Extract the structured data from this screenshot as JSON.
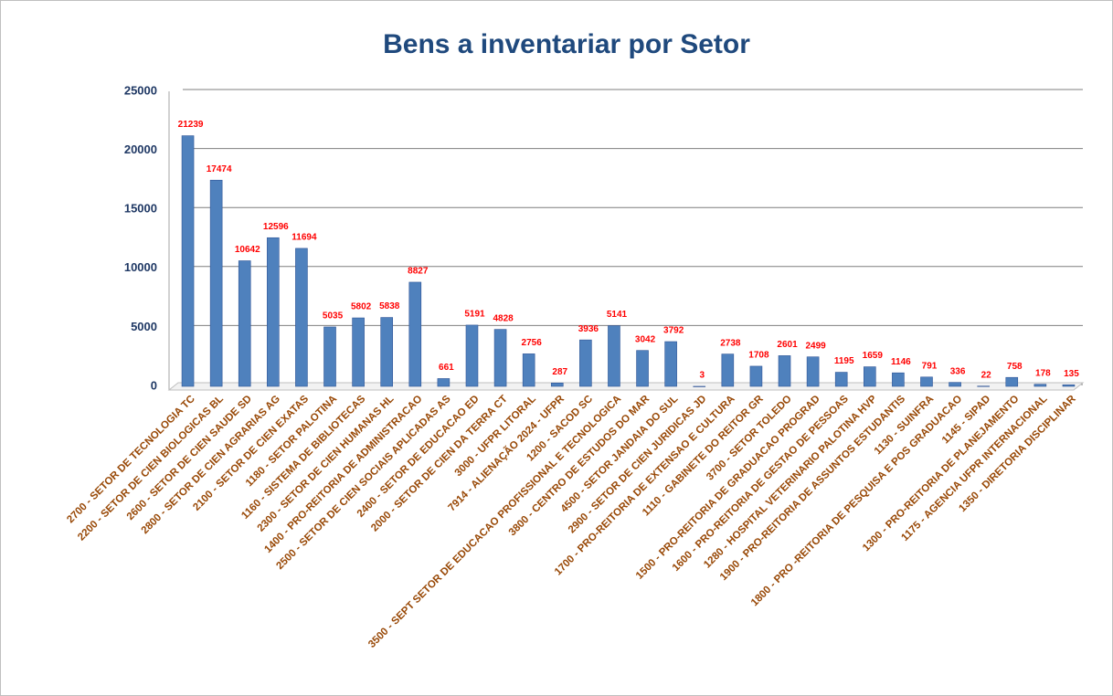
{
  "chart_data": {
    "type": "bar",
    "title": "Bens a inventariar por Setor",
    "categories": [
      "2700 - SETOR DE TECNOLOGIA TC",
      "2200 - SETOR DE CIEN BIOLOGICAS BL",
      "2600 - SETOR DE CIEN  SAUDE SD",
      "2800 - SETOR DE CIEN AGRARIAS AG",
      "2100 - SETOR DE CIEN EXATAS",
      "1180 - SETOR PALOTINA",
      "1160 - SISTEMA DE BIBLIOTECAS",
      "2300 - SETOR DE CIEN HUMANAS HL",
      "1400 - PRO-REITORIA DE ADMINISTRACAO",
      "2500 - SETOR DE CIEN SOCIAIS APLICADAS AS",
      "2400 - SETOR DE EDUCACAO ED",
      "2000 - SETOR DE CIEN DA TERRA CT",
      "3000 - UFPR LITORAL",
      "7914 - ALIENAÇÃO 2024 - UFPR",
      "1200 - SACOD SC",
      "3500 - SEPT SETOR DE EDUCACAO PROFISSIONAL E TECNOLOGICA",
      "3800 - CENTRO DE ESTUDOS DO MAR",
      "4500 - SETOR JANDAIA DO SUL",
      "2900 - SETOR DE CIEN JURIDICAS JD",
      "1700 - PRO-REITORIA DE EXTENSAO E CULTURA",
      "1110 - GABINETE DO REITOR GR",
      "3700 - SETOR TOLEDO",
      "1500 - PRO-REITORIA DE GRADUACAO PROGRAD",
      "1600 - PRO-REITORIA DE GESTAO DE PESSOAS",
      "1280 - HOSPITAL VETERINARIO PALOTINA HVP",
      "1900 - PRO-REITORIA DE ASSUNTOS ESTUDANTIS",
      "1130 - SUINFRA",
      "1800 - PRO -REITORIA DE PESQUISA E POS GRADUACAO",
      "1145 - SIPAD",
      "1300 - PRO-REITORIA DE PLANEJAMENTO",
      "1175 - AGENCIA UFPR INTERNACIONAL",
      "1350 - DIRETORIA DISCIPLINAR"
    ],
    "values": [
      21239,
      17474,
      10642,
      12596,
      11694,
      5035,
      5802,
      5838,
      8827,
      661,
      5191,
      4828,
      2756,
      287,
      3936,
      5141,
      3042,
      3792,
      3,
      2738,
      1708,
      2601,
      2499,
      1195,
      1659,
      1146,
      791,
      336,
      22,
      758,
      178,
      135
    ],
    "color": "#4f81bd",
    "ylim": [
      0,
      25000
    ],
    "yticks": [
      0,
      5000,
      10000,
      15000,
      20000,
      25000
    ],
    "grid": true
  }
}
